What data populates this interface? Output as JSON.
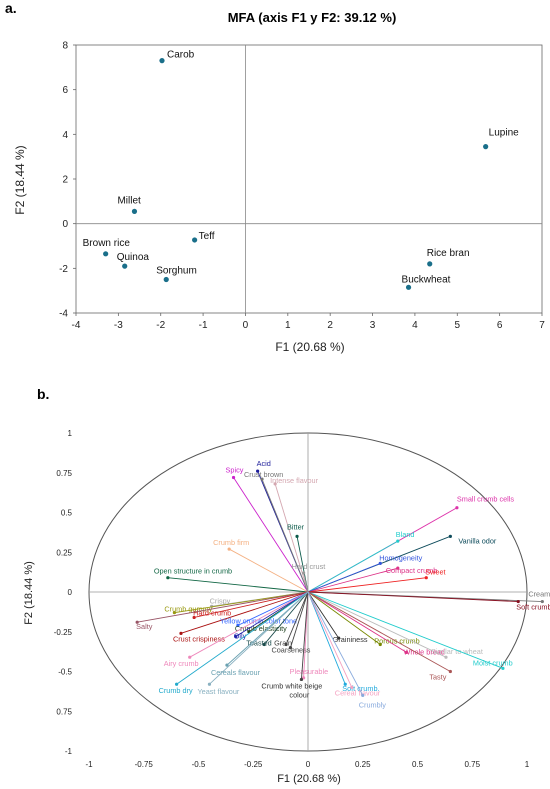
{
  "panels": {
    "a": "a.",
    "b": "b."
  },
  "colors": {
    "point": "#1a6f8a",
    "axis": "#888888",
    "frame": "#666666"
  },
  "chart_data": [
    {
      "type": "scatter",
      "title": "MFA (axis F1 y F2: 39.12 %)",
      "xlabel": "F1 (20.68 %)",
      "ylabel": "F2 (18.44 %)",
      "xlim": [
        -4,
        7
      ],
      "ylim": [
        -4,
        8
      ],
      "xticks": [
        -4,
        -3,
        -2,
        -1,
        0,
        1,
        2,
        3,
        4,
        5,
        6,
        7
      ],
      "yticks": [
        -4,
        -2,
        0,
        2,
        4,
        6,
        8
      ],
      "points": [
        {
          "label": "Carob",
          "x": -1.97,
          "y": 7.3
        },
        {
          "label": "Lupine",
          "x": 5.67,
          "y": 3.45
        },
        {
          "label": "Millet",
          "x": -2.62,
          "y": 0.55
        },
        {
          "label": "Teff",
          "x": -1.2,
          "y": -0.73
        },
        {
          "label": "Brown rice",
          "x": -3.3,
          "y": -1.35
        },
        {
          "label": "Quinoa",
          "x": -2.85,
          "y": -1.9
        },
        {
          "label": "Sorghum",
          "x": -1.87,
          "y": -2.5
        },
        {
          "label": "Rice bran",
          "x": 4.35,
          "y": -1.8
        },
        {
          "label": "Buckwheat",
          "x": 3.85,
          "y": -2.85
        }
      ]
    },
    {
      "type": "scatter",
      "subtype": "correlation-circle",
      "xlabel": "F1 (20.68 %)",
      "ylabel": "F2 (18.44 %)",
      "xlim": [
        -1,
        1
      ],
      "ylim": [
        -1,
        1
      ],
      "xtick_labels": [
        "-1",
        "-0.75",
        "-0.5",
        "-0.25",
        "0",
        "0.25",
        "0.5",
        "0.75",
        "1"
      ],
      "ytick_labels": [
        "1",
        "0.75",
        "0.5",
        "0.25",
        "0",
        "-0.25",
        "-0.5",
        "0.75",
        "-1"
      ],
      "variables": [
        {
          "label": "Spicy",
          "x": -0.34,
          "y": 0.72,
          "color": "#cc22cc"
        },
        {
          "label": "Acid",
          "x": -0.23,
          "y": 0.76,
          "color": "#1d1d9a"
        },
        {
          "label": "Crust brown",
          "x": -0.21,
          "y": 0.71,
          "color": "#777777"
        },
        {
          "label": "Intense flavour",
          "x": -0.15,
          "y": 0.68,
          "color": "#d4a7b0"
        },
        {
          "label": "Small crumb cells",
          "x": 0.68,
          "y": 0.53,
          "color": "#dd33aa"
        },
        {
          "label": "Bitter",
          "x": -0.05,
          "y": 0.35,
          "color": "#0d5b4b"
        },
        {
          "label": "Bland",
          "x": 0.41,
          "y": 0.32,
          "color": "#22cccc"
        },
        {
          "label": "Vanilla odor",
          "x": 0.65,
          "y": 0.35,
          "color": "#0d4b5b"
        },
        {
          "label": "Crumb firm",
          "x": -0.36,
          "y": 0.27,
          "color": "#f4b183"
        },
        {
          "label": "Hard crust",
          "x": -0.02,
          "y": 0.12,
          "color": "#999999"
        },
        {
          "label": "Homogeneity",
          "x": 0.33,
          "y": 0.18,
          "color": "#3355dd"
        },
        {
          "label": "Compact crumb",
          "x": 0.41,
          "y": 0.15,
          "color": "#dd3388"
        },
        {
          "label": "Sweet",
          "x": 0.54,
          "y": 0.09,
          "color": "#ee2222"
        },
        {
          "label": "Open structure in crumb",
          "x": -0.64,
          "y": 0.09,
          "color": "#116644"
        },
        {
          "label": "Creamy",
          "x": 1.07,
          "y": -0.06,
          "color": "#777777"
        },
        {
          "label": "Soft crumb",
          "x": 0.96,
          "y": -0.06,
          "color": "#881122"
        },
        {
          "label": "Crispy",
          "x": -0.44,
          "y": -0.09,
          "color": "#aaaaaa"
        },
        {
          "label": "Crumb gummy",
          "x": -0.61,
          "y": -0.13,
          "color": "#999911"
        },
        {
          "label": "Hard crumb",
          "x": -0.52,
          "y": -0.16,
          "color": "#cc2222"
        },
        {
          "label": "Salty",
          "x": -0.78,
          "y": -0.19,
          "color": "#995566"
        },
        {
          "label": "Crust crispiness",
          "x": -0.58,
          "y": -0.26,
          "color": "#aa1111"
        },
        {
          "label": "Yellow crumb color tone",
          "x": -0.32,
          "y": -0.21,
          "color": "#3366ff"
        },
        {
          "label": "Crumb elasticity",
          "x": -0.27,
          "y": -0.25,
          "color": "#224422"
        },
        {
          "label": "Oily",
          "x": -0.33,
          "y": -0.28,
          "color": "#2222aa"
        },
        {
          "label": "Graininess",
          "x": 0.14,
          "y": -0.29,
          "color": "#333333"
        },
        {
          "label": "Porous crumb",
          "x": 0.33,
          "y": -0.33,
          "color": "#778800"
        },
        {
          "label": "Whole bread",
          "x": 0.45,
          "y": -0.38,
          "color": "#dd3388"
        },
        {
          "label": "Similar to wheat",
          "x": 0.63,
          "y": -0.41,
          "color": "#bbbbbb"
        },
        {
          "label": "Moist crumb",
          "x": 0.89,
          "y": -0.48,
          "color": "#22cccc"
        },
        {
          "label": "Tasty",
          "x": 0.65,
          "y": -0.5,
          "color": "#aa5555"
        },
        {
          "label": "Airy crumb",
          "x": -0.54,
          "y": -0.41,
          "color": "#ee88bb"
        },
        {
          "label": "Toasted",
          "x": -0.2,
          "y": -0.33,
          "color": "#1b4b4b"
        },
        {
          "label": "Grain",
          "x": -0.1,
          "y": -0.33,
          "color": "#444444"
        },
        {
          "label": "Coarseness",
          "x": -0.08,
          "y": -0.35,
          "color": "#444444"
        },
        {
          "label": "Cereals flavour",
          "x": -0.37,
          "y": -0.46,
          "color": "#6aa1b1"
        },
        {
          "label": "Crumb dry",
          "x": -0.6,
          "y": -0.58,
          "color": "#22aacc"
        },
        {
          "label": "Yeast flavour",
          "x": -0.45,
          "y": -0.58,
          "color": "#8ab1c1"
        },
        {
          "label": "Pleasurable",
          "x": -0.02,
          "y": -0.54,
          "color": "#ee88bb"
        },
        {
          "label": "Crumb white beige colour",
          "x": -0.03,
          "y": -0.55,
          "color": "#444444"
        },
        {
          "label": "Soft crumb.",
          "x": 0.17,
          "y": -0.58,
          "color": "#22aadd"
        },
        {
          "label": "Cereal flavour",
          "x": 0.2,
          "y": -0.6,
          "color": "#f4a1c1"
        },
        {
          "label": "Crumbly",
          "x": 0.25,
          "y": -0.65,
          "color": "#88aadd"
        }
      ]
    }
  ]
}
